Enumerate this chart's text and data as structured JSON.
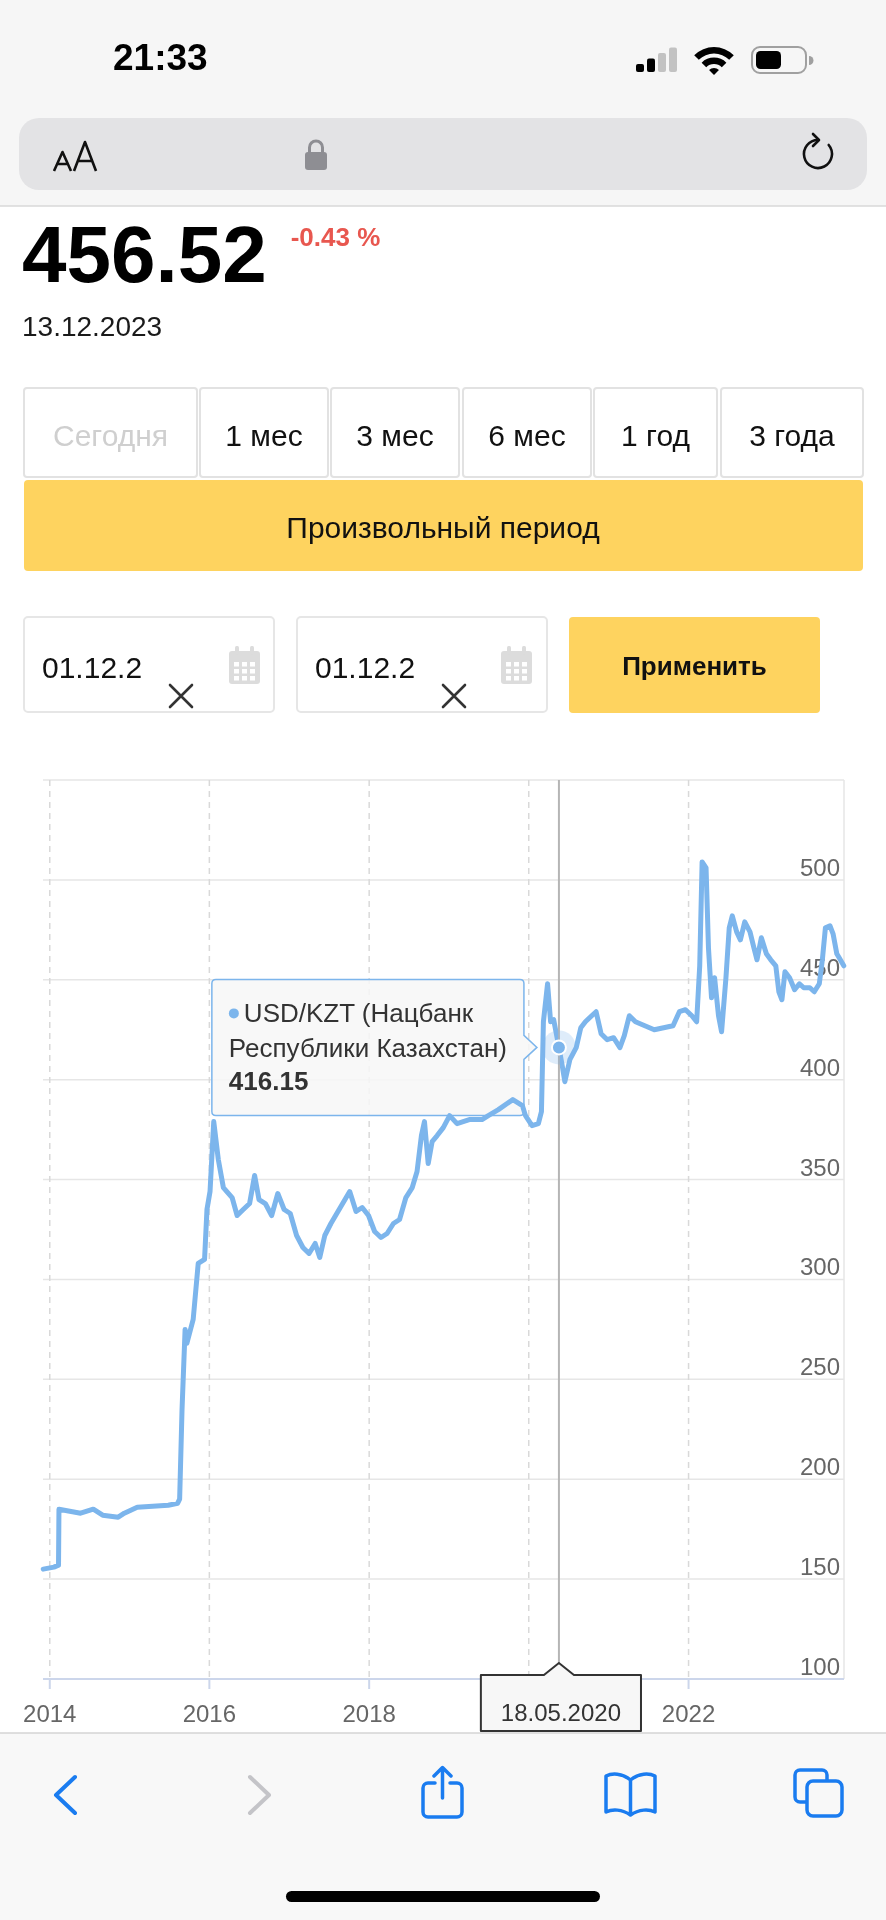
{
  "chart_data": {
    "type": "line",
    "x": [
      "2013-12-02",
      "2014-01-20",
      "2014-02-10",
      "2014-02-12",
      "2014-05-22",
      "2014-07-19",
      "2014-08-31",
      "2014-11-10",
      "2014-12-08",
      "2015-02-05",
      "2015-06-27",
      "2015-08-09",
      "2015-08-18",
      "2015-08-29",
      "2015-09-12",
      "2015-09-20",
      "2015-10-19",
      "2015-11-11",
      "2015-12-10",
      "2015-12-21",
      "2016-01-04",
      "2016-01-21",
      "2016-02-11",
      "2016-03-05",
      "2016-04-14",
      "2016-05-07",
      "2016-06-04",
      "2016-07-03",
      "2016-07-26",
      "2016-08-15",
      "2016-09-13",
      "2016-10-12",
      "2016-11-09",
      "2016-12-08",
      "2017-01-05",
      "2017-02-03",
      "2017-03-04",
      "2017-04-01",
      "2017-04-29",
      "2017-05-20",
      "2017-06-12",
      "2017-07-10",
      "2017-08-22",
      "2017-10-04",
      "2017-11-02",
      "2017-11-30",
      "2017-12-29",
      "2018-01-26",
      "2018-02-24",
      "2018-03-24",
      "2018-04-22",
      "2018-05-20",
      "2018-06-18",
      "2018-07-17",
      "2018-08-08",
      "2018-08-28",
      "2018-09-11",
      "2018-09-28",
      "2018-10-16",
      "2018-11-08",
      "2018-12-06",
      "2019-01-04",
      "2019-02-07",
      "2019-04-04",
      "2019-06-01",
      "2019-06-30",
      "2019-08-15",
      "2019-10-20",
      "2019-12-03",
      "2019-12-17",
      "2020-01-16",
      "2020-02-14",
      "2020-02-28",
      "2020-03-08",
      "2020-03-27",
      "2020-04-10",
      "2020-04-24",
      "2020-05-18",
      "2020-06-02",
      "2020-06-14",
      "2020-07-07",
      "2020-08-05",
      "2020-08-26",
      "2020-09-16",
      "2020-10-15",
      "2020-11-04",
      "2020-11-27",
      "2020-12-25",
      "2021-01-23",
      "2021-02-21",
      "2021-03-13",
      "2021-04-05",
      "2021-05-03",
      "2021-06-15",
      "2021-07-28",
      "2021-09-09",
      "2021-10-22",
      "2021-11-20",
      "2021-12-18",
      "2022-01-16",
      "2022-02-07",
      "2022-02-21",
      "2022-03-04",
      "2022-03-22",
      "2022-04-02",
      "2022-04-16",
      "2022-04-30",
      "2022-05-18",
      "2022-06-01",
      "2022-06-21",
      "2022-07-06",
      "2022-07-20",
      "2022-08-09",
      "2022-08-26",
      "2022-09-15",
      "2022-10-09",
      "2022-10-27",
      "2022-11-10",
      "2022-11-30",
      "2022-12-23",
      "2023-01-12",
      "2023-02-04",
      "2023-02-18",
      "2023-03-04",
      "2023-03-18",
      "2023-04-08",
      "2023-05-01",
      "2023-05-23",
      "2023-06-12",
      "2023-07-10",
      "2023-07-30",
      "2023-08-22",
      "2023-09-05",
      "2023-09-19",
      "2023-10-10",
      "2023-10-24",
      "2023-11-10",
      "2023-11-21",
      "2023-12-12"
    ],
    "series": [
      {
        "name": "USD/KZT (Нацбанк Республики Казахстан)",
        "color": "#7cb5ec",
        "values": [
          155,
          156,
          157,
          185,
          183,
          185,
          182,
          181,
          183,
          186,
          187,
          188,
          190,
          235,
          275,
          268,
          280,
          308,
          310,
          335,
          344,
          379,
          360,
          346,
          341,
          332,
          335,
          338,
          352,
          340,
          338,
          332,
          343,
          335,
          333,
          322,
          316,
          313,
          318,
          311,
          322,
          328,
          336,
          344,
          334,
          336,
          332,
          324,
          321,
          323,
          328,
          330,
          341,
          346,
          354,
          372,
          379,
          358,
          369,
          372,
          376,
          382,
          378,
          380,
          380,
          382,
          385,
          390,
          387,
          382,
          377,
          378,
          384,
          429,
          448,
          429,
          430,
          416.15,
          407,
          399,
          410,
          416,
          426,
          429,
          432,
          434,
          423,
          420,
          421,
          416,
          422,
          432,
          429,
          427,
          425,
          426,
          427,
          434,
          435,
          432,
          429,
          457,
          509,
          506,
          466,
          441,
          451,
          432,
          424,
          451,
          476,
          482,
          474,
          470,
          479,
          474,
          466,
          460,
          471,
          463,
          460,
          457,
          444,
          440,
          454,
          451,
          445,
          448,
          446,
          446,
          444,
          448,
          460,
          476,
          477,
          473,
          463,
          461,
          457
        ]
      }
    ],
    "xlim": [
      "2013-12-01",
      "2023-12-13"
    ],
    "xticks": [
      "2014",
      "2016",
      "2018",
      {
        "value": "2020",
        "label": null
      },
      "2022"
    ],
    "ylim": [
      100,
      550
    ],
    "yticks": [
      100,
      150,
      200,
      250,
      300,
      350,
      400,
      450,
      500,
      {
        "value": 550,
        "label": null
      }
    ],
    "grid": true,
    "ref_lines": [
      {
        "axis": "x",
        "value": "2020-05-18",
        "label": "18.05.2020"
      }
    ],
    "annotations": [
      "21:33",
      "456.52",
      "-0.43 %",
      "13.12.2023",
      "Сегодня",
      "1 мес",
      "3 мес",
      "6 мес",
      "1 год",
      "3 года",
      "Произвольный период",
      "01.12.2",
      "01.12.2",
      "Применить",
      "416.15"
    ]
  }
}
